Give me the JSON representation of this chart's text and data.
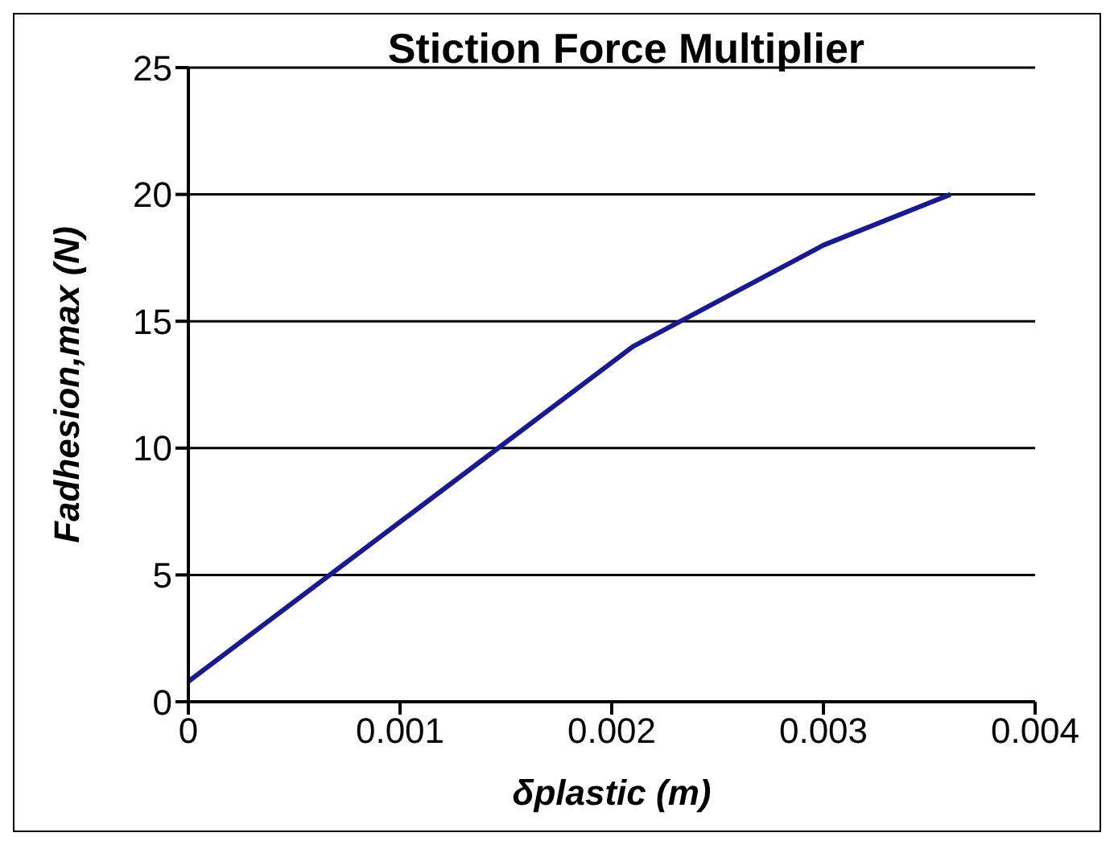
{
  "chart_data": {
    "type": "line",
    "title": "Stiction Force Multiplier",
    "xlabel": "δplastic (m)",
    "ylabel": "Fadhesion,max (N)",
    "x": [
      0,
      0.0021,
      0.003,
      0.0036
    ],
    "series": [
      {
        "color": "#1a1a8c",
        "values": [
          0.8,
          14,
          18,
          20
        ]
      }
    ],
    "xlim": [
      0,
      0.004
    ],
    "xticks": [
      0,
      0.001,
      0.002,
      0.003,
      0.004
    ],
    "ylim": [
      0,
      25
    ],
    "yticks": [
      0,
      5,
      10,
      15,
      20,
      25
    ],
    "grid": "y",
    "marker": "none",
    "line_style": "solid",
    "legend": false
  }
}
